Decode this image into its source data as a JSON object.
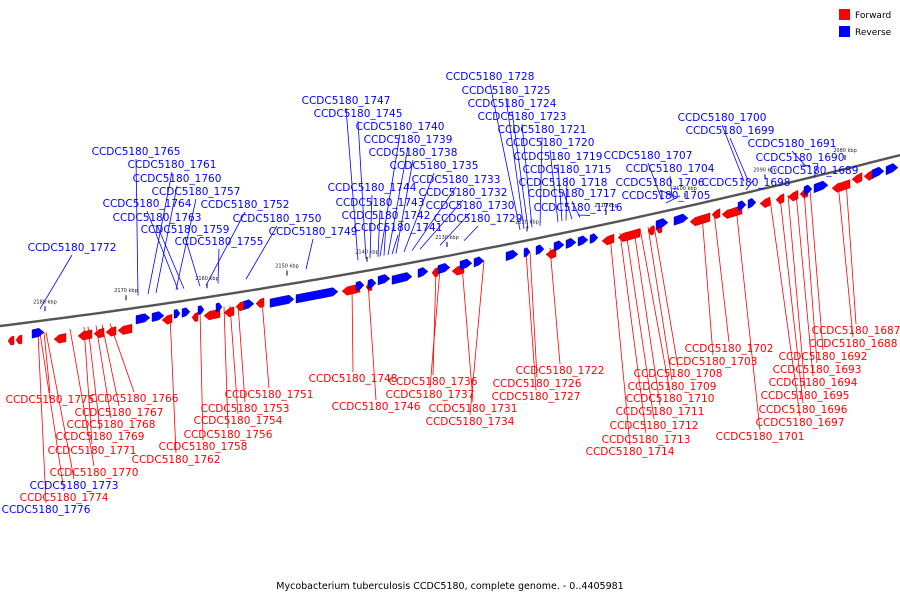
{
  "caption": "Mycobacterium tuberculosis CCDC5180, complete genome. - 0..4405981",
  "legend": [
    {
      "label": "Forward",
      "color": "#ff0000"
    },
    {
      "label": "Reverse",
      "color": "#0000ff"
    }
  ],
  "colors": {
    "forward": "#ff0000",
    "reverse": "#0000ff",
    "backbone": "#555555"
  },
  "tick_labels": [
    "2180 kbp",
    "2170 kbp",
    "2160 kbp",
    "2150 kbp",
    "2140 kbp",
    "2130 kbp",
    "2120 kbp",
    "2110 kbp",
    "2100 kbp",
    "2090 kbp",
    "2080 kbp"
  ],
  "top_labels": [
    "CCDC5180_1728",
    "CCDC5180_1725",
    "CCDC5180_1724",
    "CCDC5180_1723",
    "CCDC5180_1721",
    "CCDC5180_1720",
    "CCDC5180_1719",
    "CCDC5180_1715",
    "CCDC5180_1718",
    "CCDC5180_1717",
    "CCDC5180_1716",
    "CCDC5180_1747",
    "CCDC5180_1745",
    "CCDC5180_1740",
    "CCDC5180_1739",
    "CCDC5180_1738",
    "CCDC5180_1735",
    "CCDC5180_1733",
    "CCDC5180_1744",
    "CCDC5180_1732",
    "CCDC5180_1743",
    "CCDC5180_1730",
    "CCDC5180_1742",
    "CCDC5180_1729",
    "CCDC5180_1741",
    "CCDC5180_1765",
    "CCDC5180_1761",
    "CCDC5180_1760",
    "CCDC5180_1757",
    "CCDC5180_1764",
    "CCDC5180_1752",
    "CCDC5180_1763",
    "CCDC5180_1750",
    "CCDC5180_1759",
    "CCDC5180_1749",
    "CCDC5180_1755",
    "CCDC5180_1772",
    "CCDC5180_1700",
    "CCDC5180_1699",
    "CCDC5180_1707",
    "CCDC5180_1704",
    "CCDC5180_1706",
    "CCDC5180_1705",
    "CCDC5180_1698",
    "CCDC5180_1691",
    "CCDC5180_1690",
    "CCDC5180_1689"
  ],
  "bottom_labels": [
    "CCDC5180_1687",
    "CCDC5180_1688",
    "CCDC5180_1692",
    "CCDC5180_1693",
    "CCDC5180_1694",
    "CCDC5180_1695",
    "CCDC5180_1696",
    "CCDC5180_1697",
    "CCDC5180_1701",
    "CCDC5180_1702",
    "CCDC5180_1703",
    "CCDC5180_1708",
    "CCDC5180_1709",
    "CCDC5180_1710",
    "CCDC5180_1711",
    "CCDC5180_1712",
    "CCDC5180_1713",
    "CCDC5180_1714",
    "CCDC5180_1722",
    "CCDC5180_1726",
    "CCDC5180_1727",
    "CCDC5180_1736",
    "CCDC5180_1737",
    "CCDC5180_1731",
    "CCDC5180_1734",
    "CCDC5180_1748",
    "CCDC5180_1746",
    "CCDC5180_1751",
    "CCDC5180_1753",
    "CCDC5180_1754",
    "CCDC5180_1756",
    "CCDC5180_1758",
    "CCDC5180_1762",
    "CCDC5180_1775",
    "CCDC5180_1766",
    "CCDC5180_1767",
    "CCDC5180_1768",
    "CCDC5180_1769",
    "CCDC5180_1771",
    "CCDC5180_1770",
    "CCDC5180_1773",
    "CCDC5180_1774",
    "CCDC5180_1776"
  ]
}
